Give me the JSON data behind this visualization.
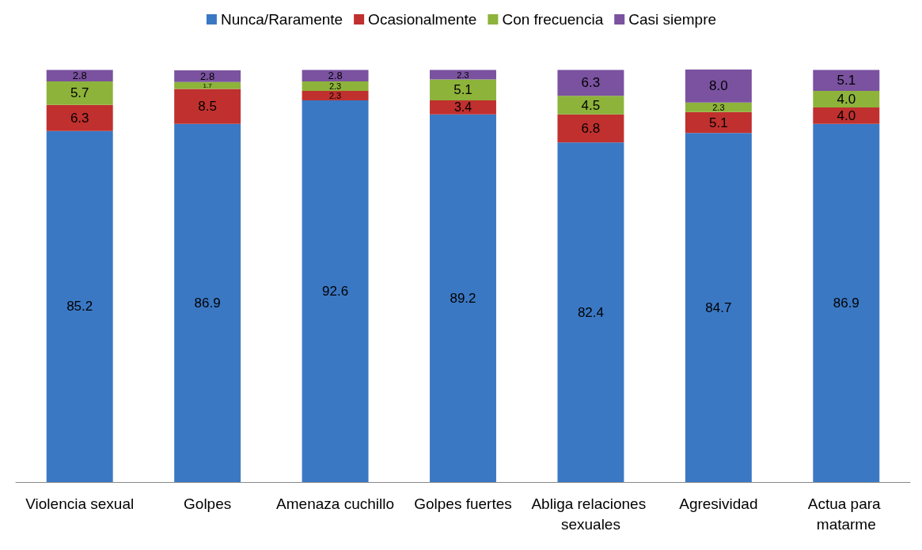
{
  "chart_data": {
    "type": "bar",
    "stacked": true,
    "legend": "top",
    "categories": [
      "Violencia sexual",
      "Golpes",
      "Amenaza cuchillo",
      "Golpes fuertes",
      "Abliga relaciones sexuales",
      "Agresividad",
      "Actua para matarme"
    ],
    "series": [
      {
        "name": "Nunca/Raramente",
        "color": "#3a78c4",
        "values": [
          85.2,
          86.9,
          92.6,
          89.2,
          82.4,
          84.7,
          86.9
        ],
        "value_labels": [
          "85.2",
          "86.9",
          "92.6",
          "89.2",
          "82.4",
          "84.7",
          "86.9"
        ]
      },
      {
        "name": "Ocasionalmente",
        "color": "#c0302e",
        "values": [
          6.3,
          8.5,
          2.3,
          3.4,
          6.8,
          5.1,
          4.0
        ],
        "value_labels": [
          "6.3",
          "8.5",
          "2.3",
          "3.4",
          "6.8",
          "5.1",
          "4.0"
        ]
      },
      {
        "name": "Con frecuencia",
        "color": "#8db33a",
        "values": [
          5.7,
          1.7,
          2.3,
          5.1,
          4.5,
          2.3,
          4.0
        ],
        "value_labels": [
          "5.7",
          "1.7",
          "2.3",
          "5.1",
          "4.5",
          "2.3",
          "4.0"
        ]
      },
      {
        "name": "Casi siempre",
        "color": "#7a52a0",
        "values": [
          2.8,
          2.8,
          2.8,
          2.3,
          6.3,
          8.0,
          5.1
        ],
        "value_labels": [
          "2.8",
          "2.8",
          "2.8",
          "2.3",
          "6.3",
          "8.0",
          "5.1"
        ]
      }
    ]
  }
}
